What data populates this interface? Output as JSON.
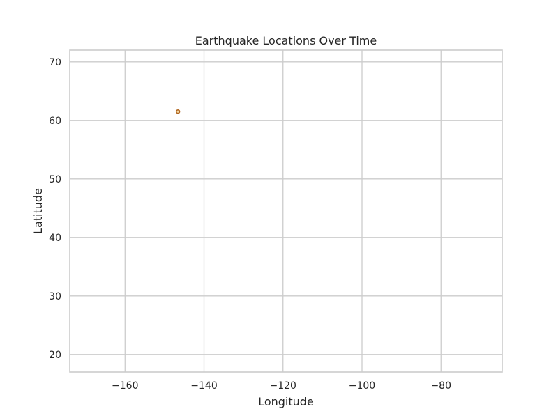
{
  "chart_data": {
    "type": "scatter",
    "title": "Earthquake Locations Over Time",
    "xlabel": "Longitude",
    "ylabel": "Latitude",
    "xlim": [
      -174,
      -64.5
    ],
    "ylim": [
      17,
      72
    ],
    "xticks": [
      -160,
      -140,
      -120,
      -100,
      -80
    ],
    "xtick_labels": [
      "−160",
      "−140",
      "−120",
      "−100",
      "−80"
    ],
    "yticks": [
      20,
      30,
      40,
      50,
      60,
      70
    ],
    "ytick_labels": [
      "20",
      "30",
      "40",
      "50",
      "60",
      "70"
    ],
    "grid": true,
    "points": [
      {
        "x": -146.6,
        "y": 61.5
      }
    ],
    "colors": {
      "point_fill": "#f3d9a4",
      "point_edge": "#b0651f",
      "grid": "#cccccc",
      "text": "#262626"
    }
  }
}
